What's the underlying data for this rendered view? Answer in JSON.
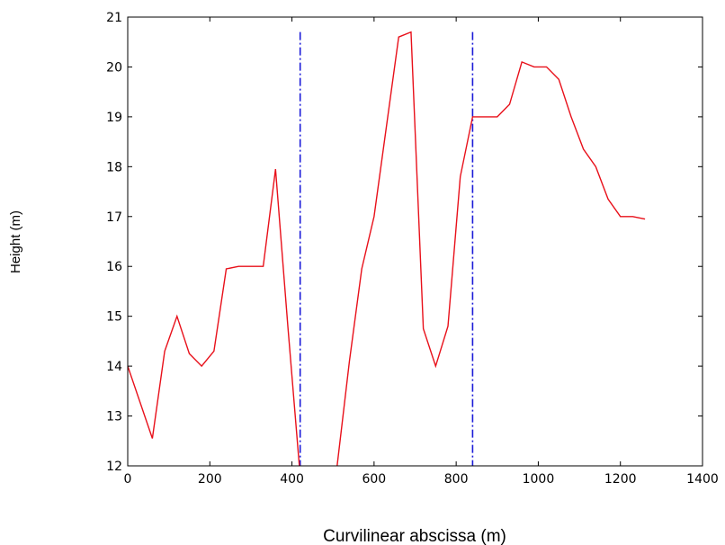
{
  "chart_data": {
    "type": "line",
    "title": "",
    "xlabel": "Curvilinear abscissa (m)",
    "ylabel": "Height (m)",
    "xlim": [
      0,
      1400
    ],
    "ylim": [
      12,
      21
    ],
    "xticks": [
      0,
      200,
      400,
      600,
      800,
      1000,
      1200,
      1400
    ],
    "yticks": [
      12,
      13,
      14,
      15,
      16,
      17,
      18,
      19,
      20,
      21
    ],
    "grid": false,
    "legend": "none",
    "series": [
      {
        "color": "#e8101a",
        "segments": [
          [
            [
              0,
              14.0
            ],
            [
              60,
              12.55
            ],
            [
              90,
              14.3
            ],
            [
              120,
              15.0
            ],
            [
              150,
              14.25
            ],
            [
              180,
              14.0
            ],
            [
              210,
              14.3
            ],
            [
              240,
              15.95
            ],
            [
              270,
              16.0
            ],
            [
              330,
              16.0
            ],
            [
              360,
              17.95
            ],
            [
              390,
              14.8
            ],
            [
              418,
              12.0
            ]
          ],
          [
            [
              510,
              12.0
            ],
            [
              540,
              14.1
            ],
            [
              570,
              15.95
            ],
            [
              600,
              17.0
            ],
            [
              630,
              18.8
            ],
            [
              660,
              20.6
            ],
            [
              690,
              20.7
            ],
            [
              720,
              14.75
            ],
            [
              750,
              14.0
            ],
            [
              780,
              14.8
            ],
            [
              810,
              17.8
            ],
            [
              840,
              19.0
            ],
            [
              900,
              19.0
            ],
            [
              930,
              19.25
            ],
            [
              960,
              20.1
            ],
            [
              990,
              20.0
            ],
            [
              1020,
              20.0
            ],
            [
              1050,
              19.75
            ],
            [
              1080,
              19.0
            ],
            [
              1110,
              18.35
            ],
            [
              1140,
              18.0
            ],
            [
              1170,
              17.35
            ],
            [
              1200,
              17.0
            ],
            [
              1230,
              17.0
            ],
            [
              1260,
              16.95
            ]
          ]
        ]
      }
    ],
    "vlines": [
      {
        "x": 420,
        "y_top": 20.7,
        "color": "#1b1bd8",
        "style": "dashdot"
      },
      {
        "x": 840,
        "y_top": 20.7,
        "color": "#1b1bd8",
        "style": "dashdot"
      }
    ]
  }
}
